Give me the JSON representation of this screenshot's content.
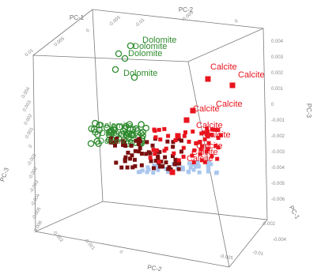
{
  "chart_data": {
    "type": "scatter",
    "projection": "3d",
    "axes": {
      "pc1": {
        "label": "PC-1",
        "ticks": [
          "0.01",
          "0.005",
          "0",
          "-0.005"
        ]
      },
      "pc2": {
        "label": "PC-2",
        "ticks": [
          "-0.01",
          "-0.005",
          "0"
        ]
      },
      "pc3": {
        "label": "PC-3",
        "ticks": [
          "0.004",
          "0.003",
          "0.002",
          "0.001",
          "0",
          "-0.001",
          "-0.002",
          "-0.003",
          "-0.004",
          "-0.005",
          "-0.006"
        ]
      },
      "bottom_labels": [
        "PC-2",
        "-0.005",
        "-0.01",
        "PC-1"
      ]
    },
    "series": [
      {
        "label": "Dolomite",
        "color": "#2e8b2e",
        "marker": "open-circle"
      },
      {
        "label": "Calcite",
        "color": "#e8141e",
        "marker": "square"
      },
      {
        "color": "#7a0f0f",
        "marker": "square"
      },
      {
        "color": "#a9c6ee",
        "marker": "square"
      }
    ],
    "annotations": {
      "dolomite": [
        "Dolomite",
        "Dolomite",
        "Dolomite",
        "Dolomite",
        "Dolomite",
        "Dolomite",
        "Dolomite"
      ],
      "calcite": [
        "Calcite",
        "Calcite",
        "Calcite",
        "Calcite",
        "Calcite",
        "Calcite",
        "Calcite",
        "Calcite",
        "Calcite"
      ]
    }
  }
}
